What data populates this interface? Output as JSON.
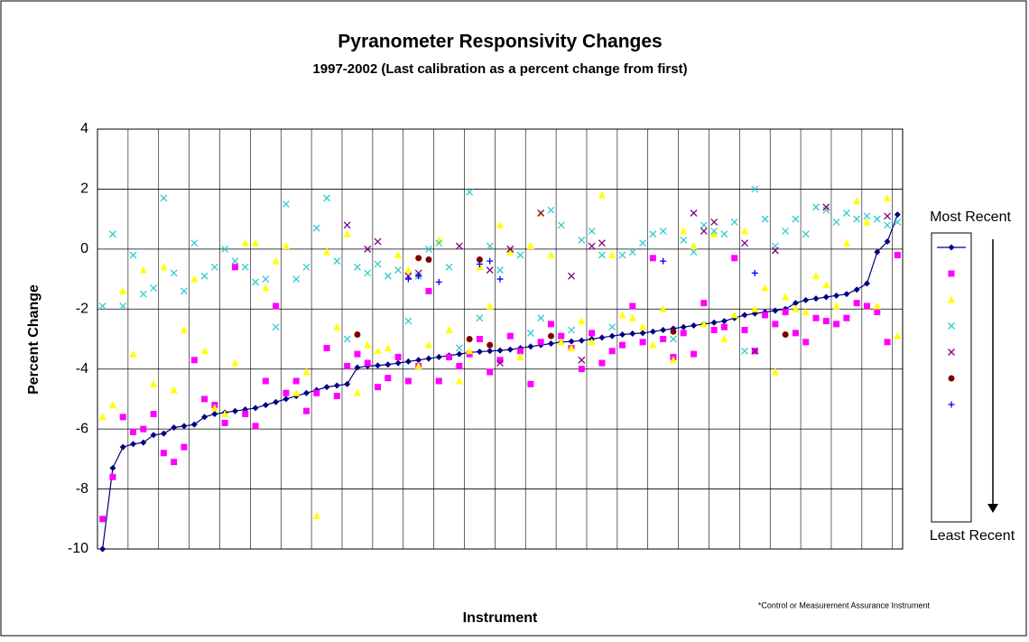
{
  "chart_data": {
    "type": "scatter",
    "title": "Pyranometer Responsivity Changes",
    "subtitle": "1997-2002 (Last calibration as a percent change from first)",
    "x_label": "Instrument",
    "y_label": "Percent Change",
    "ylim": [
      -10,
      4
    ],
    "yticks": [
      -10,
      -8,
      -6,
      -4,
      -2,
      0,
      2,
      4
    ],
    "grid": true,
    "legend": "right",
    "legend_top_label": "Most Recent",
    "legend_bottom_label": "Least Recent",
    "footnote": "*Control or Measurement Assurance Instrument",
    "series": [
      {
        "color": "#000080",
        "marker": "diamond-line",
        "values": [
          -10,
          -7.3,
          -6.6,
          -6.5,
          -6.45,
          -6.2,
          -6.15,
          -5.95,
          -5.9,
          -5.85,
          -5.6,
          -5.5,
          -5.45,
          -5.4,
          -5.35,
          -5.3,
          -5.2,
          -5.1,
          -5,
          -4.9,
          -4.8,
          -4.7,
          -4.6,
          -4.55,
          -4.5,
          -3.95,
          -3.9,
          -3.88,
          -3.85,
          -3.8,
          -3.75,
          -3.7,
          -3.65,
          -3.6,
          -3.55,
          -3.5,
          -3.45,
          -3.42,
          -3.4,
          -3.38,
          -3.35,
          -3.3,
          -3.25,
          -3.2,
          -3.15,
          -3.1,
          -3.08,
          -3.05,
          -3,
          -2.95,
          -2.9,
          -2.85,
          -2.82,
          -2.8,
          -2.75,
          -2.7,
          -2.65,
          -2.6,
          -2.55,
          -2.5,
          -2.45,
          -2.4,
          -2.3,
          -2.2,
          -2.15,
          -2.1,
          -2.05,
          -2,
          -1.8,
          -1.7,
          -1.65,
          -1.6,
          -1.55,
          -1.5,
          -1.35,
          -1.15,
          -0.1,
          0.25,
          1.15
        ]
      },
      {
        "color": "#ff00ff",
        "marker": "square",
        "values": [
          -9,
          -7.6,
          -5.6,
          -6.1,
          -6,
          -5.5,
          -6.8,
          -7.1,
          -6.6,
          -3.7,
          -5,
          -5.2,
          -5.8,
          -0.6,
          -5.5,
          -5.9,
          -4.4,
          -1.9,
          -4.8,
          -4.4,
          -5.4,
          -4.8,
          -3.3,
          -4.9,
          -3.9,
          -3.5,
          -3.8,
          -4.6,
          -4.3,
          -3.6,
          -4.4,
          -3.9,
          -1.4,
          -4.4,
          -3.6,
          -3.9,
          -3.5,
          -3,
          -4.1,
          -3.7,
          -2.9,
          -3.4,
          -4.5,
          -3.1,
          -2.5,
          -2.9,
          -3.3,
          -4,
          -2.8,
          -3.8,
          -3.4,
          -3.2,
          -1.9,
          -3.1,
          -0.3,
          -3,
          -3.6,
          -2.8,
          -3.5,
          -1.8,
          -2.7,
          -2.6,
          -0.3,
          -2.7,
          -3.4,
          -2.2,
          -2.5,
          -2.1,
          -2.8,
          -3.1,
          -2.3,
          -2.4,
          -2.5,
          -2.3,
          -1.8,
          -1.9,
          -2.1,
          -3.1,
          -0.2
        ]
      },
      {
        "color": "#ffff00",
        "marker": "triangle",
        "values": [
          -5.6,
          -5.2,
          -1.4,
          -3.5,
          -0.7,
          -4.5,
          -0.6,
          -4.7,
          -2.7,
          -1,
          -3.4,
          -5.3,
          -5.5,
          -3.8,
          0.2,
          0.2,
          -1.3,
          -0.4,
          0.1,
          -4.8,
          -4.1,
          -8.9,
          -0.1,
          -2.6,
          0.5,
          -4.8,
          -3.2,
          -3.4,
          -3.3,
          -0.2,
          -0.7,
          -3.9,
          -3.2,
          0.3,
          -2.7,
          -4.4,
          -3.4,
          -0.6,
          -1.9,
          0.8,
          -0.1,
          -3.6,
          0.1,
          1.2,
          -0.2,
          -3.1,
          -3.3,
          -2.4,
          -3.1,
          1.8,
          -0.2,
          -2.2,
          -2.3,
          -2.6,
          -3.2,
          -2,
          -3.7,
          0.6,
          0.1,
          -2.5,
          0.5,
          -3,
          -2.2,
          0.6,
          -2,
          -1.3,
          -4.1,
          -1.6,
          -2,
          -2.1,
          -0.9,
          -1.2,
          -1.9,
          0.2,
          1.6,
          0.9,
          -1.9,
          1.7,
          -2.9
        ]
      },
      {
        "color": "#33cccc",
        "marker": "x",
        "values": [
          -1.9,
          0.5,
          -1.9,
          -0.2,
          -1.5,
          -1.3,
          1.7,
          -0.8,
          -1.4,
          0.2,
          -0.9,
          -0.6,
          0,
          -0.4,
          -0.6,
          -1.1,
          -1,
          -2.6,
          1.5,
          -1,
          -0.6,
          0.7,
          1.7,
          -0.4,
          -3,
          -0.6,
          -0.8,
          -0.5,
          -0.9,
          -0.7,
          -2.4,
          -0.9,
          0,
          0.2,
          -0.6,
          -3.3,
          1.9,
          -2.3,
          0.1,
          -0.7,
          0,
          -0.2,
          -2.8,
          -2.3,
          1.3,
          0.8,
          -2.7,
          0.3,
          0.6,
          -0.2,
          -2.6,
          -0.2,
          -0.1,
          0.2,
          0.5,
          0.6,
          -3,
          0.3,
          -0.1,
          0.8,
          0.6,
          0.5,
          0.9,
          -3.4,
          2,
          1,
          0.1,
          0.6,
          1,
          0.5,
          1.4,
          1.3,
          0.9,
          1.2,
          1,
          1.1,
          1,
          0.8,
          0.9
        ]
      },
      {
        "color": "#800080",
        "marker": "x",
        "values": [
          null,
          null,
          null,
          null,
          null,
          null,
          null,
          null,
          null,
          null,
          null,
          null,
          null,
          null,
          null,
          null,
          null,
          null,
          null,
          null,
          null,
          null,
          null,
          null,
          0.8,
          null,
          0,
          0.25,
          null,
          null,
          -0.9,
          -0.8,
          null,
          null,
          null,
          0.1,
          null,
          null,
          -0.7,
          -3.8,
          0,
          null,
          null,
          1.2,
          null,
          null,
          -0.9,
          -3.7,
          0.1,
          0.2,
          null,
          null,
          null,
          null,
          null,
          null,
          null,
          null,
          1.2,
          0.6,
          0.9,
          null,
          null,
          0.2,
          -3.4,
          null,
          -0.05,
          null,
          null,
          null,
          null,
          1.4,
          null,
          null,
          null,
          null,
          null,
          1.1,
          null
        ]
      },
      {
        "color": "#800000",
        "marker": "circle",
        "values": [
          null,
          null,
          null,
          null,
          null,
          null,
          null,
          null,
          null,
          null,
          null,
          null,
          null,
          null,
          null,
          null,
          null,
          null,
          null,
          null,
          null,
          null,
          null,
          null,
          null,
          -2.85,
          null,
          null,
          null,
          null,
          null,
          -0.3,
          -0.35,
          null,
          null,
          null,
          -3,
          -0.35,
          -3.2,
          null,
          null,
          null,
          null,
          null,
          -2.9,
          null,
          null,
          null,
          null,
          null,
          null,
          null,
          null,
          null,
          null,
          null,
          -2.75,
          null,
          null,
          null,
          null,
          null,
          null,
          null,
          null,
          null,
          null,
          -2.85,
          null,
          null,
          null,
          null,
          null,
          null,
          null,
          null,
          null,
          null,
          null
        ]
      },
      {
        "color": "#0000ff",
        "marker": "plus",
        "values": [
          null,
          null,
          null,
          null,
          null,
          null,
          null,
          null,
          null,
          null,
          null,
          null,
          null,
          null,
          null,
          null,
          null,
          null,
          null,
          null,
          null,
          null,
          null,
          null,
          null,
          null,
          null,
          null,
          null,
          null,
          -1,
          -0.9,
          null,
          -1.1,
          null,
          null,
          null,
          -0.5,
          -0.4,
          -1,
          null,
          null,
          null,
          null,
          null,
          null,
          null,
          null,
          null,
          null,
          null,
          null,
          null,
          null,
          null,
          -0.4,
          null,
          null,
          null,
          null,
          null,
          null,
          null,
          null,
          -0.8,
          null,
          null,
          null,
          null,
          null,
          null,
          null,
          null,
          null,
          null,
          null,
          null,
          null,
          null
        ]
      }
    ]
  }
}
